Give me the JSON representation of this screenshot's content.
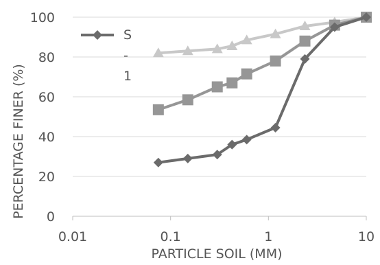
{
  "chart_data": {
    "type": "line",
    "xscale": "log",
    "xlim": [
      0.01,
      10
    ],
    "ylim": [
      0,
      100
    ],
    "xticks": [
      0.01,
      0.1,
      1,
      10
    ],
    "xtick_labels": [
      "0.01",
      "0.1",
      "1",
      "10"
    ],
    "yticks": [
      0,
      20,
      40,
      60,
      80,
      100
    ],
    "ytick_labels": [
      "0",
      "20",
      "40",
      "60",
      "80",
      "100"
    ],
    "xlabel": "PARTICLE SOIL  (MM)",
    "ylabel": "PERCENTAGE FINER (%)",
    "grid": "horizontal",
    "legend": {
      "position": "top-left",
      "label_lines": [
        "S",
        "-",
        "1"
      ]
    },
    "series": [
      {
        "name": "S-1",
        "marker": "diamond",
        "color": "#6b6b6b",
        "x": [
          0.075,
          0.15,
          0.3,
          0.425,
          0.6,
          1.18,
          2.36,
          4.75,
          10
        ],
        "values": [
          27,
          29,
          31,
          36,
          38.5,
          44.5,
          79,
          95,
          100
        ]
      },
      {
        "marker": "square",
        "color": "#969696",
        "x": [
          0.075,
          0.15,
          0.3,
          0.425,
          0.6,
          1.18,
          2.36,
          4.75,
          10
        ],
        "values": [
          53.5,
          58.5,
          65,
          67,
          71.5,
          78,
          88,
          96,
          100
        ]
      },
      {
        "marker": "triangle",
        "color": "#c8c8c8",
        "x": [
          0.075,
          0.15,
          0.3,
          0.425,
          0.6,
          1.18,
          2.36,
          4.75,
          10
        ],
        "values": [
          82,
          83,
          84,
          85.5,
          88.5,
          91.5,
          95.5,
          97.5,
          100
        ]
      }
    ]
  }
}
